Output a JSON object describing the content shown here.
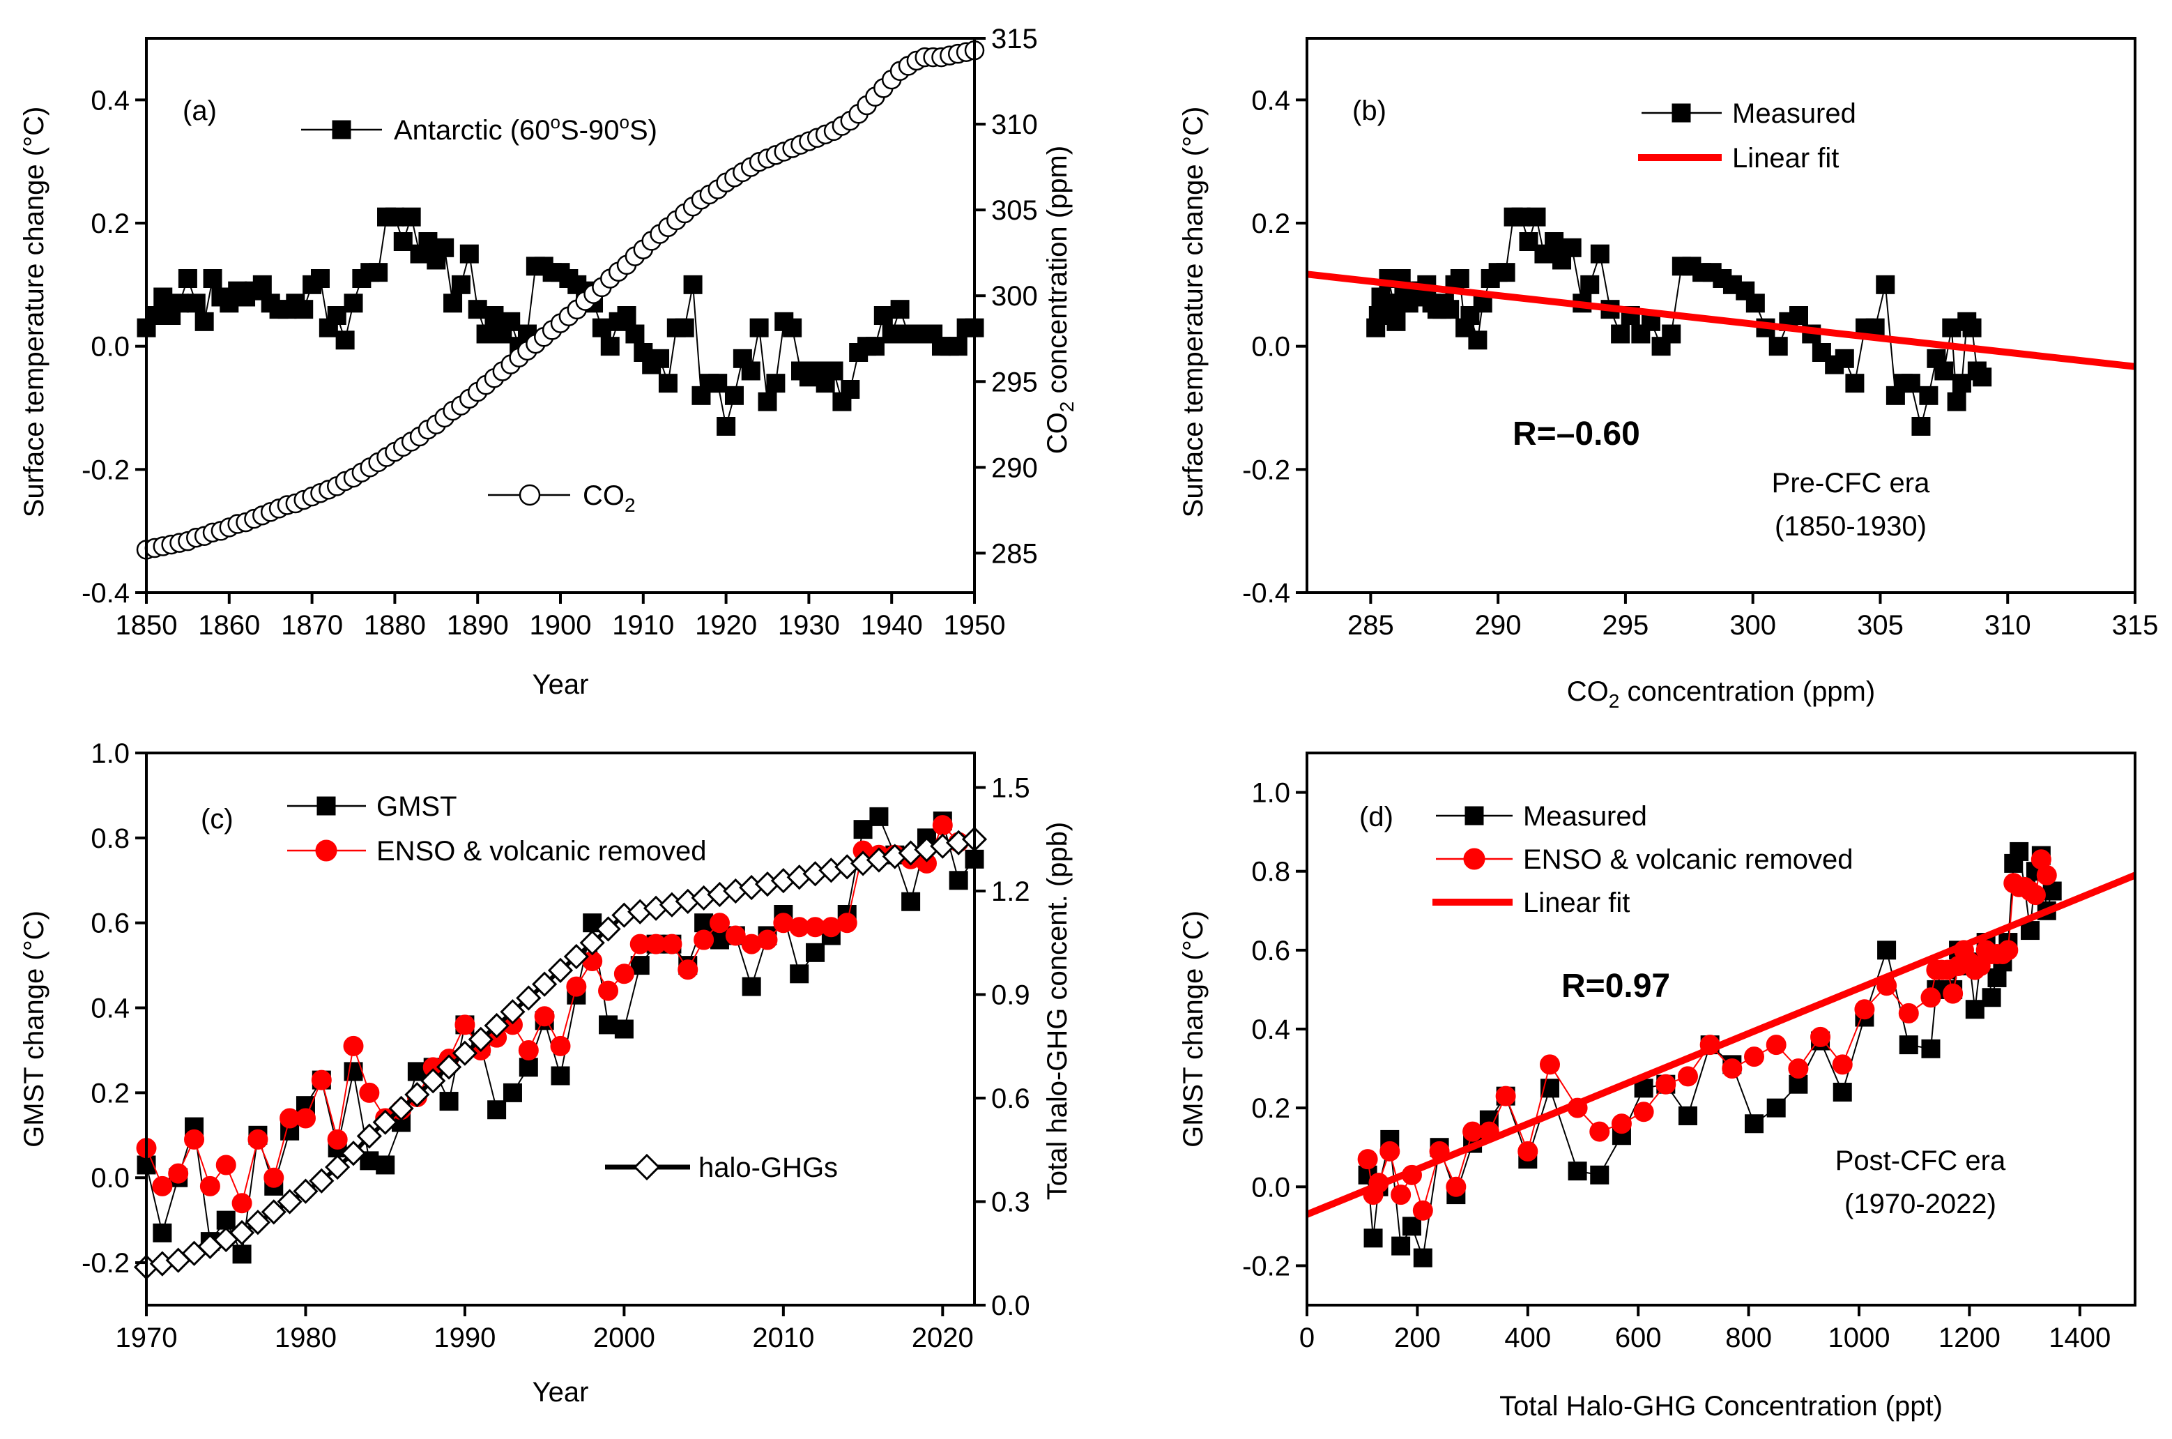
{
  "chart_data": [
    {
      "panel": "a",
      "type": "line",
      "panel_label": "(a)",
      "xlabel": "Year",
      "ylabel": "Surface temperature change (°C)",
      "y2label_parts": [
        "CO",
        "2",
        " concentration (ppm)"
      ],
      "xlim": [
        1850,
        1950
      ],
      "ylim": [
        -0.4,
        0.5
      ],
      "y2lim": [
        282.7,
        315
      ],
      "xticks": [
        1850,
        1860,
        1870,
        1880,
        1890,
        1900,
        1910,
        1920,
        1930,
        1940,
        1950
      ],
      "xtick_labels": [
        "1850",
        "1860",
        "1870",
        "1880",
        "1890",
        "1900",
        "1910",
        "1920",
        "1930",
        "1940",
        "1950"
      ],
      "yticks": [
        -0.4,
        -0.2,
        0.0,
        0.2,
        0.4
      ],
      "ytick_labels": [
        "-0.4",
        "-0.2",
        "0.0",
        "0.2",
        "0.4"
      ],
      "y2ticks": [
        285,
        290,
        295,
        300,
        305,
        310,
        315
      ],
      "y2tick_labels": [
        "285",
        "290",
        "295",
        "300",
        "305",
        "310",
        "315"
      ],
      "legend": [
        {
          "text": "Antarctic (60",
          "sup1": "o",
          "mid": "S-90",
          "sup2": "o",
          "end": "S)",
          "marker": "square"
        },
        {
          "text": "CO",
          "sub": "2",
          "marker": "circle-open"
        }
      ],
      "series": [
        {
          "name": "Antarctic (60°S-90°S)",
          "marker": "square",
          "color": "#000000",
          "x": [
            1850,
            1851,
            1852,
            1853,
            1854,
            1855,
            1856,
            1857,
            1858,
            1859,
            1860,
            1861,
            1862,
            1863,
            1864,
            1865,
            1866,
            1867,
            1868,
            1869,
            1870,
            1871,
            1872,
            1873,
            1874,
            1875,
            1876,
            1877,
            1878,
            1879,
            1880,
            1881,
            1882,
            1883,
            1884,
            1885,
            1886,
            1887,
            1888,
            1889,
            1890,
            1891,
            1892,
            1893,
            1894,
            1895,
            1896,
            1897,
            1898,
            1899,
            1900,
            1901,
            1902,
            1903,
            1904,
            1905,
            1906,
            1907,
            1908,
            1909,
            1910,
            1911,
            1912,
            1913,
            1914,
            1915,
            1916,
            1917,
            1918,
            1919,
            1920,
            1921,
            1922,
            1923,
            1924,
            1925,
            1926,
            1927,
            1928,
            1929,
            1930,
            1931,
            1932,
            1933,
            1934,
            1935,
            1936,
            1937,
            1938,
            1939,
            1940,
            1941,
            1942,
            1943,
            1944,
            1945,
            1946,
            1947,
            1948,
            1949,
            1950
          ],
          "y": [
            0.03,
            0.05,
            0.08,
            0.05,
            0.07,
            0.11,
            0.07,
            0.04,
            0.11,
            0.08,
            0.07,
            0.09,
            0.08,
            0.09,
            0.1,
            0.07,
            0.06,
            0.06,
            0.07,
            0.06,
            0.1,
            0.11,
            0.03,
            0.05,
            0.01,
            0.07,
            0.11,
            0.12,
            0.12,
            0.21,
            0.21,
            0.17,
            0.21,
            0.15,
            0.17,
            0.14,
            0.16,
            0.07,
            0.1,
            0.15,
            0.06,
            0.02,
            0.05,
            0.02,
            0.04,
            0.0,
            0.02,
            0.13,
            0.13,
            0.12,
            0.12,
            0.11,
            0.1,
            0.09,
            0.07,
            0.03,
            0.0,
            0.04,
            0.05,
            0.02,
            -0.01,
            -0.03,
            -0.02,
            -0.06,
            0.03,
            0.03,
            0.1,
            -0.08,
            -0.06,
            -0.06,
            -0.13,
            -0.08,
            -0.02,
            -0.04,
            0.03,
            -0.09,
            -0.06,
            0.04,
            0.03,
            -0.04,
            -0.05,
            -0.04,
            -0.06,
            -0.04,
            -0.09,
            -0.07,
            -0.01,
            0.0,
            0.0,
            0.05,
            0.02,
            0.06,
            0.02,
            0.02,
            0.02,
            0.02,
            0.0,
            0.0,
            0.0,
            0.03,
            0.03
          ]
        },
        {
          "name": "CO2",
          "marker": "circle-open",
          "color": "#000000",
          "axis": "right",
          "x": [
            1850,
            1851,
            1852,
            1853,
            1854,
            1855,
            1856,
            1857,
            1858,
            1859,
            1860,
            1861,
            1862,
            1863,
            1864,
            1865,
            1866,
            1867,
            1868,
            1869,
            1870,
            1871,
            1872,
            1873,
            1874,
            1875,
            1876,
            1877,
            1878,
            1879,
            1880,
            1881,
            1882,
            1883,
            1884,
            1885,
            1886,
            1887,
            1888,
            1889,
            1890,
            1891,
            1892,
            1893,
            1894,
            1895,
            1896,
            1897,
            1898,
            1899,
            1900,
            1901,
            1902,
            1903,
            1904,
            1905,
            1906,
            1907,
            1908,
            1909,
            1910,
            1911,
            1912,
            1913,
            1914,
            1915,
            1916,
            1917,
            1918,
            1919,
            1920,
            1921,
            1922,
            1923,
            1924,
            1925,
            1926,
            1927,
            1928,
            1929,
            1930,
            1931,
            1932,
            1933,
            1934,
            1935,
            1936,
            1937,
            1938,
            1939,
            1940,
            1941,
            1942,
            1943,
            1944,
            1945,
            1946,
            1947,
            1948,
            1949,
            1950
          ],
          "y": [
            285.2,
            285.3,
            285.4,
            285.5,
            285.6,
            285.7,
            285.9,
            286.0,
            286.2,
            286.3,
            286.5,
            286.7,
            286.8,
            287.0,
            287.2,
            287.4,
            287.6,
            287.8,
            287.9,
            288.1,
            288.3,
            288.5,
            288.7,
            288.9,
            289.2,
            289.4,
            289.7,
            290.0,
            290.3,
            290.6,
            290.9,
            291.2,
            291.5,
            291.8,
            292.2,
            292.5,
            292.9,
            293.3,
            293.6,
            294.0,
            294.4,
            294.8,
            295.2,
            295.6,
            296.0,
            296.4,
            296.8,
            297.2,
            297.6,
            298.0,
            298.4,
            298.8,
            299.2,
            299.7,
            300.1,
            300.5,
            301.0,
            301.4,
            301.8,
            302.3,
            302.7,
            303.2,
            303.6,
            304.0,
            304.4,
            304.8,
            305.2,
            305.6,
            305.9,
            306.2,
            306.6,
            306.9,
            307.2,
            307.5,
            307.8,
            308.0,
            308.2,
            308.4,
            308.6,
            308.8,
            309.0,
            309.2,
            309.4,
            309.6,
            309.9,
            310.2,
            310.6,
            311.1,
            311.6,
            312.1,
            312.6,
            313.1,
            313.4,
            313.7,
            313.9,
            313.9,
            313.9,
            314.0,
            314.1,
            314.2,
            314.3
          ]
        }
      ]
    },
    {
      "panel": "b",
      "type": "scatter",
      "panel_label": "(b)",
      "xlabel_parts": [
        "CO",
        "2",
        " concentration (ppm)"
      ],
      "ylabel": "Surface temperature change (°C)",
      "xlim": [
        282.5,
        315
      ],
      "ylim": [
        -0.4,
        0.5
      ],
      "xticks": [
        285,
        290,
        295,
        300,
        305,
        310,
        315
      ],
      "xtick_labels": [
        "285",
        "290",
        "295",
        "300",
        "305",
        "310",
        "315"
      ],
      "yticks": [
        -0.4,
        -0.2,
        0.0,
        0.2,
        0.4
      ],
      "ytick_labels": [
        "-0.4",
        "-0.2",
        "0.0",
        "0.2",
        "0.4"
      ],
      "legend": [
        "Measured",
        "Linear fit"
      ],
      "annotation_r": "R=–0.60",
      "annotation_era": [
        "Pre-CFC era",
        "(1850-1930)"
      ],
      "fit": {
        "x": [
          282.5,
          315
        ],
        "y": [
          0.117,
          -0.033
        ],
        "color": "#ff0000"
      },
      "series": [
        {
          "name": "Measured",
          "marker": "square",
          "color": "#000000"
        }
      ]
    },
    {
      "panel": "c",
      "type": "line",
      "panel_label": "(c)",
      "xlabel": "Year",
      "ylabel": "GMST change (°C)",
      "y2label": "Total halo-GHG concent. (ppb)",
      "xlim": [
        1970,
        2022
      ],
      "ylim": [
        -0.3,
        1.0
      ],
      "y2lim": [
        0.0,
        1.6
      ],
      "xticks": [
        1970,
        1980,
        1990,
        2000,
        2010,
        2020
      ],
      "xtick_labels": [
        "1970",
        "1980",
        "1990",
        "2000",
        "2010",
        "2020"
      ],
      "yticks": [
        -0.2,
        0.0,
        0.2,
        0.4,
        0.6,
        0.8,
        1.0
      ],
      "ytick_labels": [
        "-0.2",
        "0.0",
        "0.2",
        "0.4",
        "0.6",
        "0.8",
        "1.0"
      ],
      "y2ticks": [
        0.0,
        0.3,
        0.6,
        0.9,
        1.2,
        1.5
      ],
      "y2tick_labels": [
        "0.0",
        "0.3",
        "0.6",
        "0.9",
        "1.2",
        "1.5"
      ],
      "legend": [
        "GMST",
        "ENSO & volcanic removed",
        "halo-GHGs"
      ],
      "series": [
        {
          "name": "GMST",
          "marker": "square",
          "color": "#000000",
          "x": [
            1970,
            1971,
            1972,
            1973,
            1974,
            1975,
            1976,
            1977,
            1978,
            1979,
            1980,
            1981,
            1982,
            1983,
            1984,
            1985,
            1986,
            1987,
            1988,
            1989,
            1990,
            1991,
            1992,
            1993,
            1994,
            1995,
            1996,
            1997,
            1998,
            1999,
            2000,
            2001,
            2002,
            2003,
            2004,
            2005,
            2006,
            2007,
            2008,
            2009,
            2010,
            2011,
            2012,
            2013,
            2014,
            2015,
            2016,
            2017,
            2018,
            2019,
            2020,
            2021,
            2022
          ],
          "y": [
            0.03,
            -0.13,
            0.0,
            0.12,
            -0.15,
            -0.1,
            -0.18,
            0.1,
            -0.02,
            0.11,
            0.17,
            0.23,
            0.07,
            0.25,
            0.04,
            0.03,
            0.13,
            0.25,
            0.26,
            0.18,
            0.36,
            0.31,
            0.16,
            0.2,
            0.26,
            0.37,
            0.24,
            0.43,
            0.6,
            0.36,
            0.35,
            0.5,
            0.55,
            0.55,
            0.5,
            0.6,
            0.56,
            0.57,
            0.45,
            0.57,
            0.62,
            0.48,
            0.53,
            0.57,
            0.62,
            0.82,
            0.85,
            0.76,
            0.65,
            0.8,
            0.84,
            0.7,
            0.75
          ]
        },
        {
          "name": "ENSO & volcanic removed",
          "marker": "circle",
          "color": "#ff0000",
          "x": [
            1970,
            1971,
            1972,
            1973,
            1974,
            1975,
            1976,
            1977,
            1978,
            1979,
            1980,
            1981,
            1982,
            1983,
            1984,
            1985,
            1986,
            1987,
            1988,
            1989,
            1990,
            1991,
            1992,
            1993,
            1994,
            1995,
            1996,
            1997,
            1998,
            1999,
            2000,
            2001,
            2002,
            2003,
            2004,
            2005,
            2006,
            2007,
            2008,
            2009,
            2010,
            2011,
            2012,
            2013,
            2014,
            2015,
            2016,
            2017,
            2018,
            2019,
            2020,
            2021
          ],
          "y": [
            0.07,
            -0.02,
            0.01,
            0.09,
            -0.02,
            0.03,
            -0.06,
            0.09,
            0.0,
            0.14,
            0.14,
            0.23,
            0.09,
            0.31,
            0.2,
            0.14,
            0.16,
            0.19,
            0.26,
            0.28,
            0.36,
            0.3,
            0.33,
            0.36,
            0.3,
            0.38,
            0.31,
            0.45,
            0.51,
            0.44,
            0.48,
            0.55,
            0.55,
            0.55,
            0.49,
            0.56,
            0.6,
            0.57,
            0.55,
            0.56,
            0.6,
            0.59,
            0.59,
            0.59,
            0.6,
            0.77,
            0.76,
            0.76,
            0.75,
            0.74,
            0.83,
            0.79
          ]
        },
        {
          "name": "halo-GHGs",
          "marker": "diamond-open",
          "color": "#000000",
          "axis": "right",
          "x": [
            1970,
            1971,
            1972,
            1973,
            1974,
            1975,
            1976,
            1977,
            1978,
            1979,
            1980,
            1981,
            1982,
            1983,
            1984,
            1985,
            1986,
            1987,
            1988,
            1989,
            1990,
            1991,
            1992,
            1993,
            1994,
            1995,
            1996,
            1997,
            1998,
            1999,
            2000,
            2001,
            2002,
            2003,
            2004,
            2005,
            2006,
            2007,
            2008,
            2009,
            2010,
            2011,
            2012,
            2013,
            2014,
            2015,
            2016,
            2017,
            2018,
            2019,
            2020,
            2021,
            2022
          ],
          "y": [
            0.11,
            0.12,
            0.13,
            0.15,
            0.17,
            0.19,
            0.21,
            0.24,
            0.27,
            0.3,
            0.33,
            0.36,
            0.4,
            0.44,
            0.49,
            0.53,
            0.57,
            0.61,
            0.65,
            0.69,
            0.73,
            0.77,
            0.81,
            0.85,
            0.89,
            0.93,
            0.97,
            1.01,
            1.05,
            1.09,
            1.13,
            1.14,
            1.15,
            1.16,
            1.17,
            1.18,
            1.19,
            1.2,
            1.21,
            1.22,
            1.23,
            1.24,
            1.25,
            1.26,
            1.27,
            1.28,
            1.29,
            1.3,
            1.31,
            1.32,
            1.33,
            1.34,
            1.35
          ]
        }
      ]
    },
    {
      "panel": "d",
      "type": "scatter",
      "panel_label": "(d)",
      "xlabel": "Total Halo-GHG Concentration (ppt)",
      "ylabel": "GMST change (°C)",
      "xlim": [
        0,
        1500
      ],
      "ylim": [
        -0.3,
        1.1
      ],
      "xticks": [
        0,
        200,
        400,
        600,
        800,
        1000,
        1200,
        1400
      ],
      "xtick_labels": [
        "0",
        "200",
        "400",
        "600",
        "800",
        "1000",
        "1200",
        "1400"
      ],
      "yticks": [
        -0.2,
        0.0,
        0.2,
        0.4,
        0.6,
        0.8,
        1.0
      ],
      "ytick_labels": [
        "-0.2",
        "0.0",
        "0.2",
        "0.4",
        "0.6",
        "0.8",
        "1.0"
      ],
      "legend": [
        "Measured",
        "ENSO & volcanic removed",
        "Linear fit"
      ],
      "annotation_r": "R=0.97",
      "annotation_era": [
        "Post-CFC era",
        "(1970-2022)"
      ],
      "fit": {
        "x": [
          0,
          1500
        ],
        "y": [
          -0.07,
          0.79
        ],
        "color": "#ff0000"
      },
      "series": [
        {
          "name": "Measured",
          "marker": "square",
          "color": "#000000"
        },
        {
          "name": "ENSO & volcanic removed",
          "marker": "circle",
          "color": "#ff0000"
        }
      ]
    }
  ]
}
